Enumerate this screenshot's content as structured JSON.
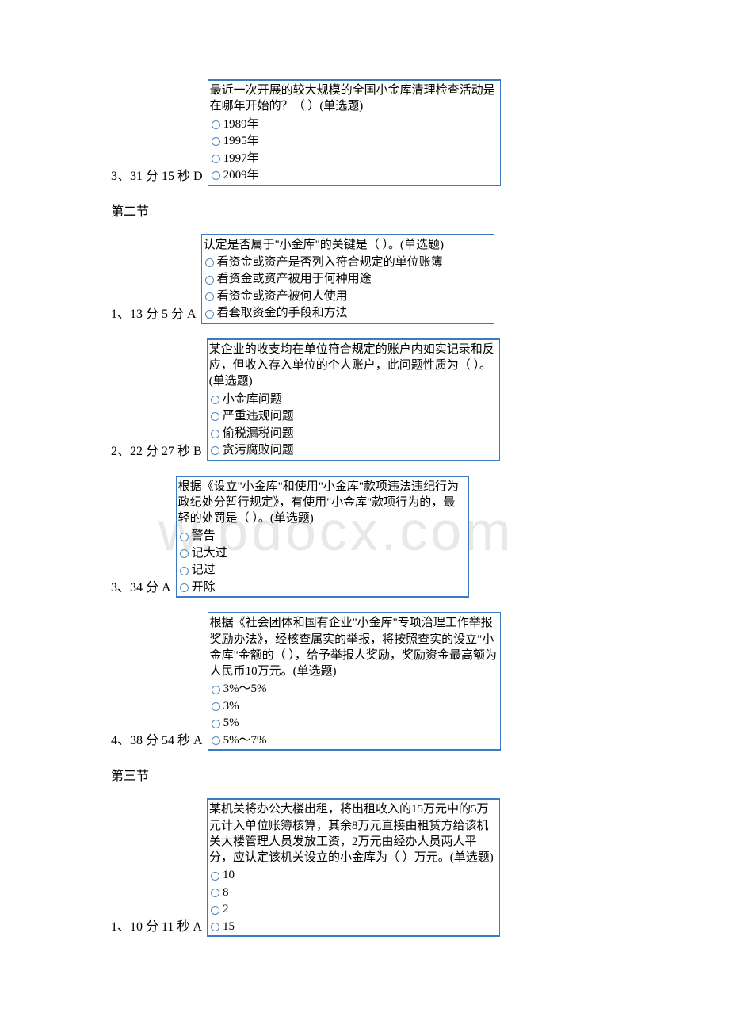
{
  "watermark": "w.bdocx.com",
  "items": [
    {
      "label": "3、31 分 15 秒 D",
      "question": "最近一次开展的较大规模的全国小金库清理检查活动是在哪年开始的？（ ）(单选题)",
      "options": [
        "1989年",
        "1995年",
        "1997年",
        "2009年"
      ]
    },
    {
      "heading": "第二节"
    },
    {
      "label": "1、13 分 5 分 A",
      "question": "认定是否属于\"小金库\"的关键是（ ）。(单选题)",
      "options": [
        "看资金或资产是否列入符合规定的单位账簿",
        "看资金或资产被用于何种用途",
        "看资金或资产被何人使用",
        "看套取资金的手段和方法"
      ]
    },
    {
      "label": "2、22 分 27 秒 B",
      "question": "某企业的收支均在单位符合规定的账户内如实记录和反应，但收入存入单位的个人账户，此问题性质为（ ）。(单选题)",
      "options": [
        "小金库问题",
        "严重违规问题",
        "偷税漏税问题",
        "贪污腐败问题"
      ]
    },
    {
      "label": "3、34 分 A",
      "question": "根据《设立\"小金库\"和使用\"小金库\"款项违法违纪行为政纪处分暂行规定》，有使用\"小金库\"款项行为的，最轻的处罚是（ ）。(单选题)",
      "options": [
        "警告",
        "记大过",
        "记过",
        "开除"
      ]
    },
    {
      "label": "4、38 分 54 秒 A",
      "question": "根据《社会团体和国有企业\"小金库\"专项治理工作举报奖励办法》，经核查属实的举报，将按照查实的设立\"小金库\"金额的（ ），给予举报人奖励，奖励资金最高额为人民币10万元。(单选题)",
      "options": [
        "3%～5%",
        "3%",
        "5%",
        "5%～7%"
      ]
    },
    {
      "heading": "第三节"
    },
    {
      "label": "1、10 分 11 秒 A",
      "question": "某机关将办公大楼出租，将出租收入的15万元中的5万元计入单位账簿核算，其余8万元直接由租赁方给该机关大楼管理人员发放工资，2万元由经办人员两人平分，应认定该机关设立的小金库为（ ）万元。(单选题)",
      "options": [
        "10",
        "8",
        "2",
        "15"
      ]
    }
  ]
}
